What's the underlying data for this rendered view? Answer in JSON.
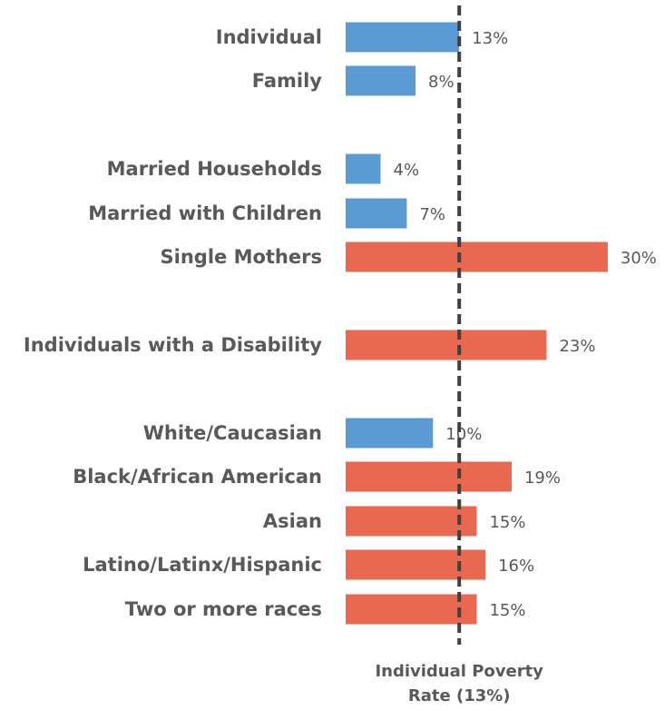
{
  "chart_data": {
    "type": "bar",
    "orientation": "horizontal",
    "categories": [
      "Individual",
      "Family",
      "Married Households",
      "Married with Children",
      "Single Mothers",
      "Individuals with a Disability",
      "White/Caucasian",
      "Black/African American",
      "Asian",
      "Latino/Latinx/Hispanic",
      "Two or more races"
    ],
    "values": [
      13,
      8,
      4,
      7,
      30,
      23,
      10,
      19,
      15,
      16,
      15
    ],
    "value_labels": [
      "13%",
      "8%",
      "4%",
      "7%",
      "30%",
      "23%",
      "10%",
      "19%",
      "15%",
      "16%",
      "15%"
    ],
    "bar_colors": [
      "#5b9bd5",
      "#5b9bd5",
      "#5b9bd5",
      "#5b9bd5",
      "#e8694f",
      "#e8694f",
      "#5b9bd5",
      "#e8694f",
      "#e8694f",
      "#e8694f",
      "#e8694f"
    ],
    "reference_line": {
      "value": 13,
      "label_lines": [
        "Individual Poverty",
        "Rate (13%)"
      ],
      "style": "dashed",
      "color": "#404040"
    },
    "colors": {
      "below_rate": "#5b9bd5",
      "above_rate": "#e8694f",
      "text": "#595959"
    },
    "xlim": [
      0,
      30
    ],
    "grid": false,
    "title": "",
    "xlabel": "",
    "ylabel": ""
  }
}
